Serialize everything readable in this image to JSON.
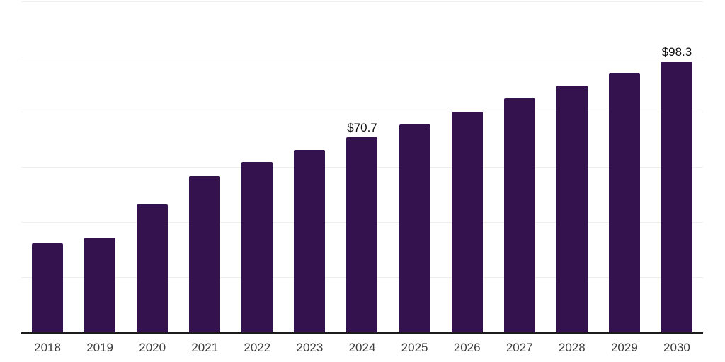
{
  "chart_data": {
    "type": "bar",
    "title": "",
    "categories": [
      "2018",
      "2019",
      "2020",
      "2021",
      "2022",
      "2023",
      "2024",
      "2025",
      "2026",
      "2027",
      "2028",
      "2029",
      "2030"
    ],
    "values": [
      32.3,
      34.3,
      46.4,
      56.6,
      61.7,
      66.1,
      70.7,
      75.5,
      80.0,
      84.8,
      89.4,
      94.0,
      98.3
    ],
    "data_labels": [
      "",
      "",
      "",
      "",
      "",
      "",
      "$70.7",
      "",
      "",
      "",
      "",
      "",
      "$98.3"
    ],
    "xlabel": "",
    "ylabel": "",
    "ylim": [
      0,
      120
    ],
    "gridline_values": [
      20,
      40,
      60,
      80,
      100,
      120
    ],
    "grid": true,
    "legend": "none",
    "colors": {
      "bar": "#33124E",
      "axis_line": "#1c1c1c",
      "gridline": "#eeeeee",
      "tick_label": "#3c3c3c",
      "data_label": "#0f0f0f",
      "background": "#ffffff"
    }
  }
}
